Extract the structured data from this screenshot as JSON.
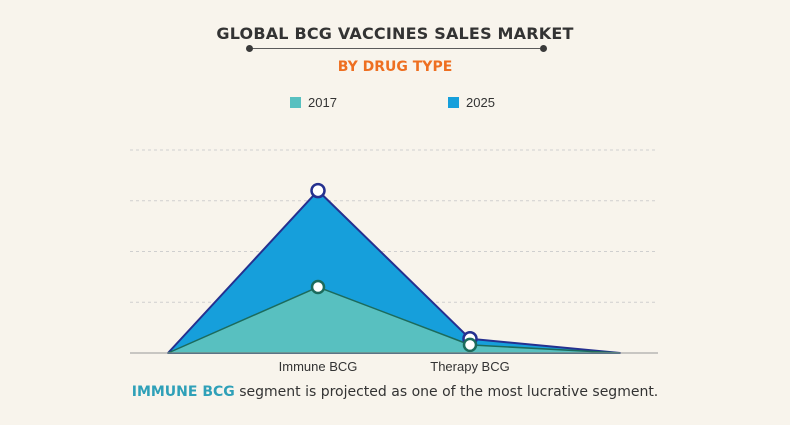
{
  "chart_data": {
    "type": "area",
    "title": "GLOBAL BCG VACCINES SALES MARKET",
    "subtitle": "BY DRUG TYPE",
    "categories": [
      "",
      "Immune BCG",
      "Therapy BCG",
      ""
    ],
    "series": [
      {
        "name": "2025",
        "values": [
          0,
          160,
          14,
          0
        ]
      },
      {
        "name": "2017",
        "values": [
          0,
          65,
          8,
          0
        ]
      }
    ],
    "ylim": [
      0,
      200
    ],
    "grid": true,
    "legend_position": "top"
  },
  "colors": {
    "series_2017": "#58c0c0",
    "series_2025": "#169fdb",
    "outline_2017": "#1c6b5c",
    "outline_2025": "#25308f",
    "axis": "#999999",
    "grid": "#cfcfcf",
    "title": "#333333",
    "subtitle": "#ee6f21",
    "highlight": "#2fa0b8"
  },
  "caption": {
    "highlight": "IMMUNE BCG",
    "rest": " segment is projected as one of the most lucrative segment."
  }
}
